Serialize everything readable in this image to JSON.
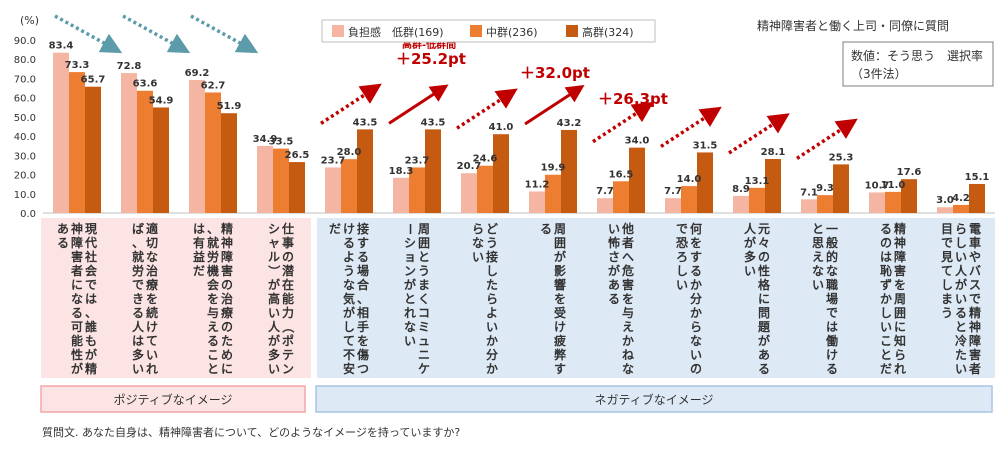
{
  "chart_data": {
    "type": "bar",
    "title": "精神障害者と働く上司・同僚に質問",
    "note_lines": [
      "数値：そう思う　選択率",
      "（3件法）"
    ],
    "y_unit": "(%)",
    "ylim": [
      0,
      90
    ],
    "yticks": [
      "90.0",
      "80.0",
      "70.0",
      "60.0",
      "50.0",
      "40.0",
      "30.0",
      "20.0",
      "10.0",
      "0.0"
    ],
    "series": [
      {
        "name": "負担感　低群(169)",
        "color": "#f4b6a2"
      },
      {
        "name": "中群(236)",
        "color": "#ed7d31"
      },
      {
        "name": "高群(324)",
        "color": "#c55a11"
      }
    ],
    "categories": [
      {
        "label": "現代社会では、誰もが精神障害者になる可能性がある",
        "group": "positive",
        "values": [
          83.4,
          73.3,
          65.7
        ]
      },
      {
        "label": "適切な治療を続けていれば、就労できる人は多い",
        "group": "positive",
        "values": [
          72.8,
          63.6,
          54.9
        ]
      },
      {
        "label": "精神障害の治療のために、就労機会を与えることは有益だ",
        "group": "positive",
        "values": [
          69.2,
          62.7,
          51.9
        ]
      },
      {
        "label": "仕事の潜在能力（ポテンシャル）が高い人が多い",
        "group": "positive",
        "values": [
          34.9,
          33.5,
          26.5
        ]
      },
      {
        "label": "接する場合、相手を傷つけるような気がして不安だ",
        "group": "negative",
        "values": [
          23.7,
          28.0,
          43.5
        ]
      },
      {
        "label": "周囲とうまくコミュニケーションがとれない",
        "group": "negative",
        "values": [
          18.3,
          23.7,
          43.5
        ]
      },
      {
        "label": "どう接したらよいか分からない",
        "group": "negative",
        "values": [
          20.7,
          24.6,
          41.0
        ]
      },
      {
        "label": "周囲が影響を受け疲弊する",
        "group": "negative",
        "values": [
          11.2,
          19.9,
          43.2
        ]
      },
      {
        "label": "他者へ危害を与えかねない怖さがある",
        "group": "negative",
        "values": [
          7.7,
          16.5,
          34.0
        ]
      },
      {
        "label": "何をするか分からないので恐ろしい",
        "group": "negative",
        "values": [
          7.7,
          14.0,
          31.5
        ]
      },
      {
        "label": "元々の性格に問題がある人が多い",
        "group": "negative",
        "values": [
          8.9,
          13.1,
          28.1
        ]
      },
      {
        "label": "一般的な職場では働けると思えない",
        "group": "negative",
        "values": [
          7.1,
          9.3,
          25.3
        ]
      },
      {
        "label": "精神障害を周囲に知られるのは恥ずかしいことだ",
        "group": "negative",
        "values": [
          10.7,
          11.0,
          17.6
        ]
      },
      {
        "label": "電車やバスで精神障害者らしい人がいると冷たい目で見てしまう",
        "group": "negative",
        "values": [
          3.0,
          4.2,
          15.1
        ]
      }
    ],
    "annotations": [
      {
        "category_index": 5,
        "caption": "高群-低群間",
        "text": "＋25.2pt"
      },
      {
        "category_index": 7,
        "text": "＋32.0pt"
      },
      {
        "category_index": 8,
        "text": "＋26.3pt"
      }
    ],
    "groups": [
      {
        "key": "positive",
        "label": "ポジティブなイメージ",
        "bg": "#fce4e4",
        "border": "#f2a7a7"
      },
      {
        "key": "negative",
        "label": "ネガティブなイメージ",
        "bg": "#dde9f5",
        "border": "#a9c4e4"
      }
    ],
    "footnote": "質問文. あなた自身は、精神障害者について、どのようなイメージを持っていますか?"
  }
}
